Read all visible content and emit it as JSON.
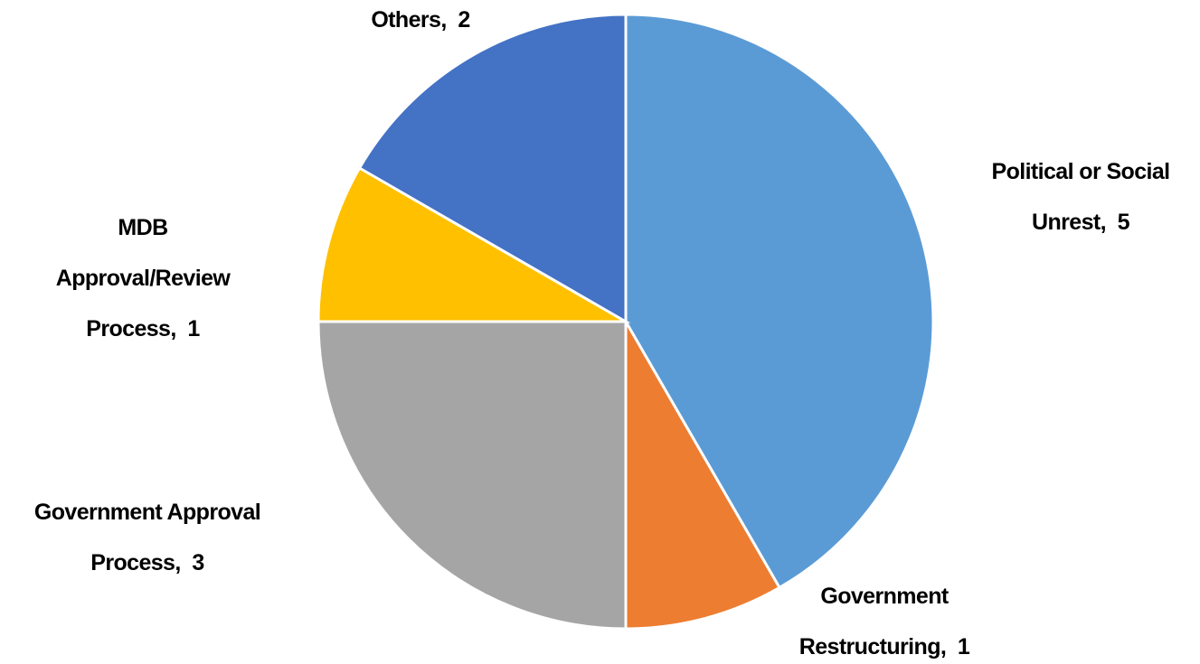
{
  "chart_data": {
    "type": "pie",
    "categories": [
      "Political or Social Unrest",
      "Government Restructuring",
      "Government Approval Process",
      "MDB Approval/Review Process",
      "Others"
    ],
    "values": [
      5,
      1,
      3,
      1,
      2
    ],
    "colors": [
      "#5b9bd5",
      "#ed7d31",
      "#a5a5a5",
      "#ffc000",
      "#4472c4"
    ],
    "label_separator": ",  "
  }
}
